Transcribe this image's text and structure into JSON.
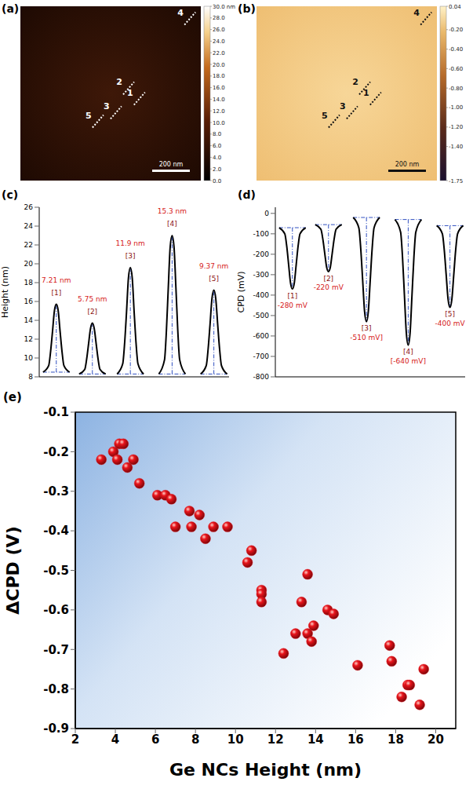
{
  "images": [
    {
      "panel": "(a)",
      "colorbar": {
        "range": [
          0,
          30
        ],
        "ticks": [
          {
            "value": 0,
            "label": "0.0"
          },
          {
            "value": 2,
            "label": "2.0"
          },
          {
            "value": 4,
            "label": "4.0"
          },
          {
            "value": 6,
            "label": "6.0"
          },
          {
            "value": 8,
            "label": "8.0"
          },
          {
            "value": 10,
            "label": "10.0"
          },
          {
            "value": 12,
            "label": "12.0"
          },
          {
            "value": 14,
            "label": "14.0"
          },
          {
            "value": 16,
            "label": "16.0"
          },
          {
            "value": 18,
            "label": "18.0"
          },
          {
            "value": 20,
            "label": "20.0"
          },
          {
            "value": 22,
            "label": "22.0"
          },
          {
            "value": 24,
            "label": "24.0"
          },
          {
            "value": 26,
            "label": "26.0"
          },
          {
            "value": 28,
            "label": "28.0"
          },
          {
            "value": 30,
            "label": "30.0 nm"
          }
        ]
      },
      "markers": [
        "1",
        "2",
        "3",
        "4",
        "5"
      ],
      "scale_bar": "200 nm"
    },
    {
      "panel": "(b)",
      "colorbar": {
        "range": [
          -1.75,
          0.04
        ],
        "ticks": [
          {
            "value": 0.04,
            "label": "0.04"
          },
          {
            "value": -0.2,
            "label": "-0.20"
          },
          {
            "value": -0.4,
            "label": "-0.40"
          },
          {
            "value": -0.6,
            "label": "-0.60"
          },
          {
            "value": -0.8,
            "label": "-0.80"
          },
          {
            "value": -1,
            "label": "-1.00"
          },
          {
            "value": -1.2,
            "label": "-1.20"
          },
          {
            "value": -1.4,
            "label": "-1.40"
          },
          {
            "value": -1.75,
            "label": "-1.75"
          }
        ]
      },
      "markers": [
        "1",
        "2",
        "3",
        "4",
        "5"
      ],
      "scale_bar": "200 nm"
    }
  ],
  "chart_data": [
    {
      "panel": "(c)",
      "type": "line",
      "ylabel": "Height (nm)",
      "color": "#000000",
      "tick_labels": "y",
      "xlim": [
        0,
        100
      ],
      "ylim": [
        8,
        26
      ],
      "yticks": [
        8,
        10,
        12,
        14,
        16,
        18,
        20,
        22,
        24,
        26
      ],
      "x": [
        2,
        5,
        6,
        7,
        8,
        9,
        10,
        11,
        12,
        13,
        16,
        18,
        21,
        24,
        25,
        26,
        27,
        28,
        29,
        30,
        31,
        32,
        35,
        37,
        41,
        44,
        45,
        46,
        47,
        48,
        49,
        50,
        51,
        52,
        55,
        58,
        63,
        66,
        67,
        68,
        69,
        70,
        71,
        72,
        73,
        74,
        77,
        80,
        85,
        88,
        89,
        90,
        91,
        92,
        93,
        94,
        95,
        96,
        99
      ],
      "values": [
        8.5,
        9.2,
        10.7,
        12.8,
        15.0,
        15.7,
        15.0,
        12.8,
        10.7,
        9.2,
        8.5,
        null,
        8.3,
        8.8,
        9.9,
        11.5,
        13.1,
        13.7,
        13.1,
        11.5,
        9.9,
        8.8,
        8.3,
        null,
        8.3,
        9.4,
        11.6,
        14.9,
        18.5,
        19.6,
        18.5,
        14.9,
        11.6,
        9.4,
        8.3,
        null,
        8.3,
        9.8,
        12.9,
        17.5,
        21.8,
        23.0,
        21.8,
        17.5,
        12.9,
        9.8,
        8.3,
        null,
        8.3,
        9.2,
        11.0,
        13.6,
        16.3,
        17.2,
        16.3,
        13.6,
        11.0,
        9.2,
        8.3
      ],
      "annotations": [
        {
          "text": "7.21 nm",
          "x": 9,
          "y": 18.0
        },
        {
          "text": "[1]",
          "x": 9,
          "y": 16.7
        },
        {
          "text": "5.75 nm",
          "x": 28,
          "y": 16.0
        },
        {
          "text": "[2]",
          "x": 28,
          "y": 14.7
        },
        {
          "text": "11.9 nm",
          "x": 48,
          "y": 21.9
        },
        {
          "text": "[3]",
          "x": 48,
          "y": 20.6
        },
        {
          "text": "15.3 nm",
          "x": 70,
          "y": 25.3
        },
        {
          "text": "[4]",
          "x": 70,
          "y": 24.0
        },
        {
          "text": "9.37 nm",
          "x": 92,
          "y": 19.5
        },
        {
          "text": "[5]",
          "x": 92,
          "y": 18.2
        }
      ]
    },
    {
      "panel": "(d)",
      "type": "line",
      "ylabel": "CPD (mV)",
      "color": "#000000",
      "tick_labels": "y",
      "xlim": [
        0,
        100
      ],
      "ylim": [
        -800,
        30
      ],
      "yticks": [
        -800,
        -700,
        -600,
        -500,
        -400,
        -300,
        -200,
        -100,
        0
      ],
      "x": [
        2,
        5,
        6,
        7,
        8,
        9,
        10,
        11,
        12,
        13,
        16,
        18,
        21,
        24,
        25,
        26,
        27,
        28,
        29,
        30,
        31,
        32,
        35,
        37,
        41,
        44,
        45,
        46,
        47,
        48,
        49,
        50,
        51,
        52,
        55,
        58,
        63,
        66,
        67,
        68,
        69,
        70,
        71,
        72,
        73,
        74,
        77,
        80,
        85,
        88,
        89,
        90,
        91,
        92,
        93,
        94,
        95,
        96,
        99
      ],
      "values": [
        -70,
        -100,
        -160,
        -250,
        -340,
        -370,
        -340,
        -250,
        -160,
        -100,
        -70,
        null,
        -55,
        -78,
        -124,
        -193,
        -262,
        -285,
        -262,
        -193,
        -124,
        -78,
        -55,
        null,
        -20,
        -71,
        -173,
        -326,
        -479,
        -530,
        -479,
        -326,
        -173,
        -71,
        -20,
        null,
        -30,
        -92,
        -215,
        -399,
        -584,
        -645,
        -584,
        -399,
        -215,
        -92,
        -30,
        null,
        -60,
        -100,
        -180,
        -300,
        -420,
        -460,
        -420,
        -300,
        -180,
        -100,
        -60
      ],
      "annotations": [
        {
          "text": "[1]",
          "x": 9,
          "y": -415
        },
        {
          "text": "-280 mV",
          "x": 9,
          "y": -460
        },
        {
          "text": "[2]",
          "x": 28,
          "y": -330
        },
        {
          "text": "-220 mV",
          "x": 28,
          "y": -375
        },
        {
          "text": "[3]",
          "x": 48,
          "y": -575
        },
        {
          "text": "-510 mV]",
          "x": 48,
          "y": -620
        },
        {
          "text": "[4]",
          "x": 70,
          "y": -690
        },
        {
          "text": "[-640 mV]",
          "x": 70,
          "y": -735
        },
        {
          "text": "[5]",
          "x": 92,
          "y": -505
        },
        {
          "text": "-400 mV",
          "x": 92,
          "y": -550
        }
      ]
    },
    {
      "panel": "(e)",
      "type": "scatter",
      "xlabel": "Ge NCs Height (nm)",
      "ylabel": "ΔCPD (V)",
      "marker": "circle",
      "color": "#e8141b",
      "xlim": [
        2,
        21
      ],
      "xticks": [
        2,
        4,
        6,
        8,
        10,
        12,
        14,
        16,
        18,
        20
      ],
      "ylim": [
        -0.9,
        -0.1
      ],
      "yticks": [
        -0.9,
        -0.8,
        -0.7,
        -0.6,
        -0.5,
        -0.4,
        -0.3,
        -0.2,
        -0.1
      ],
      "x": [
        3.3,
        3.9,
        4.1,
        4.2,
        4.4,
        4.6,
        4.9,
        5.2,
        6.1,
        6.5,
        6.8,
        7.0,
        7.7,
        7.8,
        8.2,
        8.5,
        8.9,
        9.6,
        10.6,
        10.8,
        11.3,
        11.3,
        11.3,
        12.4,
        13.0,
        13.3,
        13.6,
        13.6,
        13.8,
        13.9,
        14.6,
        14.9,
        16.1,
        17.7,
        17.8,
        18.3,
        18.6,
        18.7,
        19.2,
        19.4
      ],
      "values": [
        -0.22,
        -0.2,
        -0.22,
        -0.18,
        -0.18,
        -0.24,
        -0.22,
        -0.28,
        -0.31,
        -0.31,
        -0.32,
        -0.39,
        -0.35,
        -0.39,
        -0.36,
        -0.42,
        -0.39,
        -0.39,
        -0.48,
        -0.45,
        -0.55,
        -0.56,
        -0.58,
        -0.71,
        -0.66,
        -0.58,
        -0.66,
        -0.51,
        -0.68,
        -0.64,
        -0.6,
        -0.61,
        -0.74,
        -0.69,
        -0.73,
        -0.82,
        -0.79,
        -0.79,
        -0.84,
        -0.75
      ]
    }
  ]
}
